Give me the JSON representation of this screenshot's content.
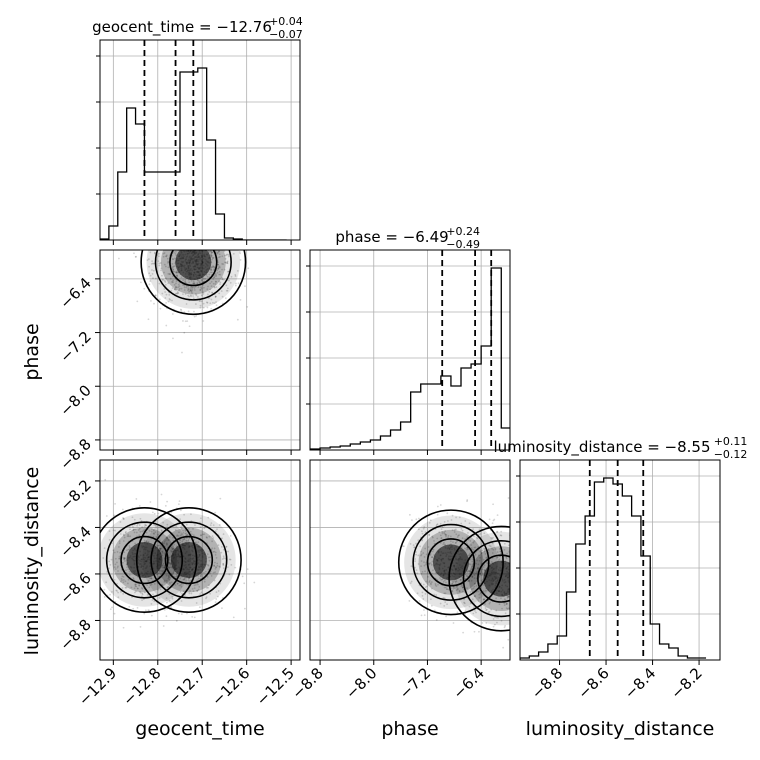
{
  "chart_data": {
    "type": "corner",
    "parameters": [
      "geocent_time",
      "phase",
      "luminosity_distance"
    ],
    "axis_labels": [
      "geocent_time",
      "phase",
      "luminosity_distance"
    ],
    "ranges": {
      "geocent_time": [
        -12.93,
        -12.48
      ],
      "phase": [
        -8.95,
        -5.97
      ],
      "luminosity_distance": [
        -8.97,
        -8.11
      ]
    },
    "ticks": {
      "geocent_time": [
        -12.9,
        -12.8,
        -12.7,
        -12.6,
        -12.5
      ],
      "phase": [
        -8.8,
        -8.0,
        -7.2,
        -6.4
      ],
      "luminosity_distance": [
        -8.8,
        -8.6,
        -8.4,
        -8.2
      ]
    },
    "tick_labels": {
      "geocent_time": [
        "−12.9",
        "−12.8",
        "−12.7",
        "−12.6",
        "−12.5"
      ],
      "phase": [
        "−8.8",
        "−8.0",
        "−7.2",
        "−6.4"
      ],
      "luminosity_distance": [
        "−8.8",
        "−8.6",
        "−8.4",
        "−8.2"
      ]
    },
    "titles": [
      {
        "param": "geocent_time",
        "prefix": "geocent_time = −12.76",
        "sup": "+0.04",
        "sub": "−0.07"
      },
      {
        "param": "phase",
        "prefix": "phase = −6.49",
        "sup": "+0.24",
        "sub": "−0.49"
      },
      {
        "param": "luminosity_distance",
        "prefix": "luminosity_distance = −8.55",
        "sup": "+0.11",
        "sub": "−0.12"
      }
    ],
    "quantiles": {
      "geocent_time": [
        -12.83,
        -12.76,
        -12.72
      ],
      "phase": [
        -6.98,
        -6.49,
        -6.25
      ],
      "luminosity_distance": [
        -8.67,
        -8.55,
        -8.44
      ]
    },
    "histograms": {
      "geocent_time": {
        "edges": [
          -12.93,
          -12.91,
          -12.89,
          -12.87,
          -12.85,
          -12.83,
          -12.81,
          -12.79,
          -12.77,
          -12.75,
          -12.73,
          -12.71,
          -12.69,
          -12.67,
          -12.65,
          -12.63,
          -12.61,
          -12.59,
          -12.57,
          -12.55,
          -12.53,
          -12.51
        ],
        "counts": [
          0.005,
          0.07,
          0.34,
          0.66,
          0.58,
          0.34,
          0.34,
          0.34,
          0.34,
          0.84,
          0.84,
          0.86,
          0.5,
          0.13,
          0.01,
          0.005,
          0,
          0,
          0,
          0,
          0
        ]
      },
      "phase": {
        "edges": [
          -8.95,
          -8.8,
          -8.65,
          -8.5,
          -8.35,
          -8.2,
          -8.05,
          -7.9,
          -7.75,
          -7.6,
          -7.45,
          -7.3,
          -7.15,
          -7.0,
          -6.85,
          -6.7,
          -6.55,
          -6.4,
          -6.25,
          -6.1,
          -5.97
        ],
        "counts": [
          0.005,
          0.01,
          0.015,
          0.02,
          0.03,
          0.04,
          0.05,
          0.07,
          0.1,
          0.14,
          0.29,
          0.33,
          0.33,
          0.37,
          0.32,
          0.41,
          0.43,
          0.52,
          0.91,
          0.11
        ]
      },
      "luminosity_distance": {
        "edges": [
          -8.97,
          -8.93,
          -8.89,
          -8.85,
          -8.81,
          -8.77,
          -8.73,
          -8.69,
          -8.65,
          -8.61,
          -8.57,
          -8.53,
          -8.49,
          -8.45,
          -8.41,
          -8.37,
          -8.33,
          -8.29,
          -8.25,
          -8.21,
          -8.17
        ],
        "counts": [
          0.01,
          0.02,
          0.04,
          0.08,
          0.12,
          0.34,
          0.58,
          0.72,
          0.89,
          0.91,
          0.88,
          0.82,
          0.72,
          0.52,
          0.18,
          0.08,
          0.06,
          0.02,
          0.01,
          0.01
        ]
      }
    },
    "density_peaks": [
      {
        "panel": "phase_vs_geocent_time",
        "x": -12.72,
        "y": -6.15
      },
      {
        "panel": "luminosity_distance_vs_geocent_time",
        "x": -12.73,
        "y": -8.54
      },
      {
        "panel": "luminosity_distance_vs_geocent_time",
        "x": -12.83,
        "y": -8.54
      },
      {
        "panel": "luminosity_distance_vs_phase",
        "x": -6.1,
        "y": -8.62
      },
      {
        "panel": "luminosity_distance_vs_phase",
        "x": -6.85,
        "y": -8.55
      }
    ],
    "grid": true,
    "colors": {
      "line": "#000000",
      "grid": "#b0b0b0",
      "points": "#000000"
    }
  }
}
